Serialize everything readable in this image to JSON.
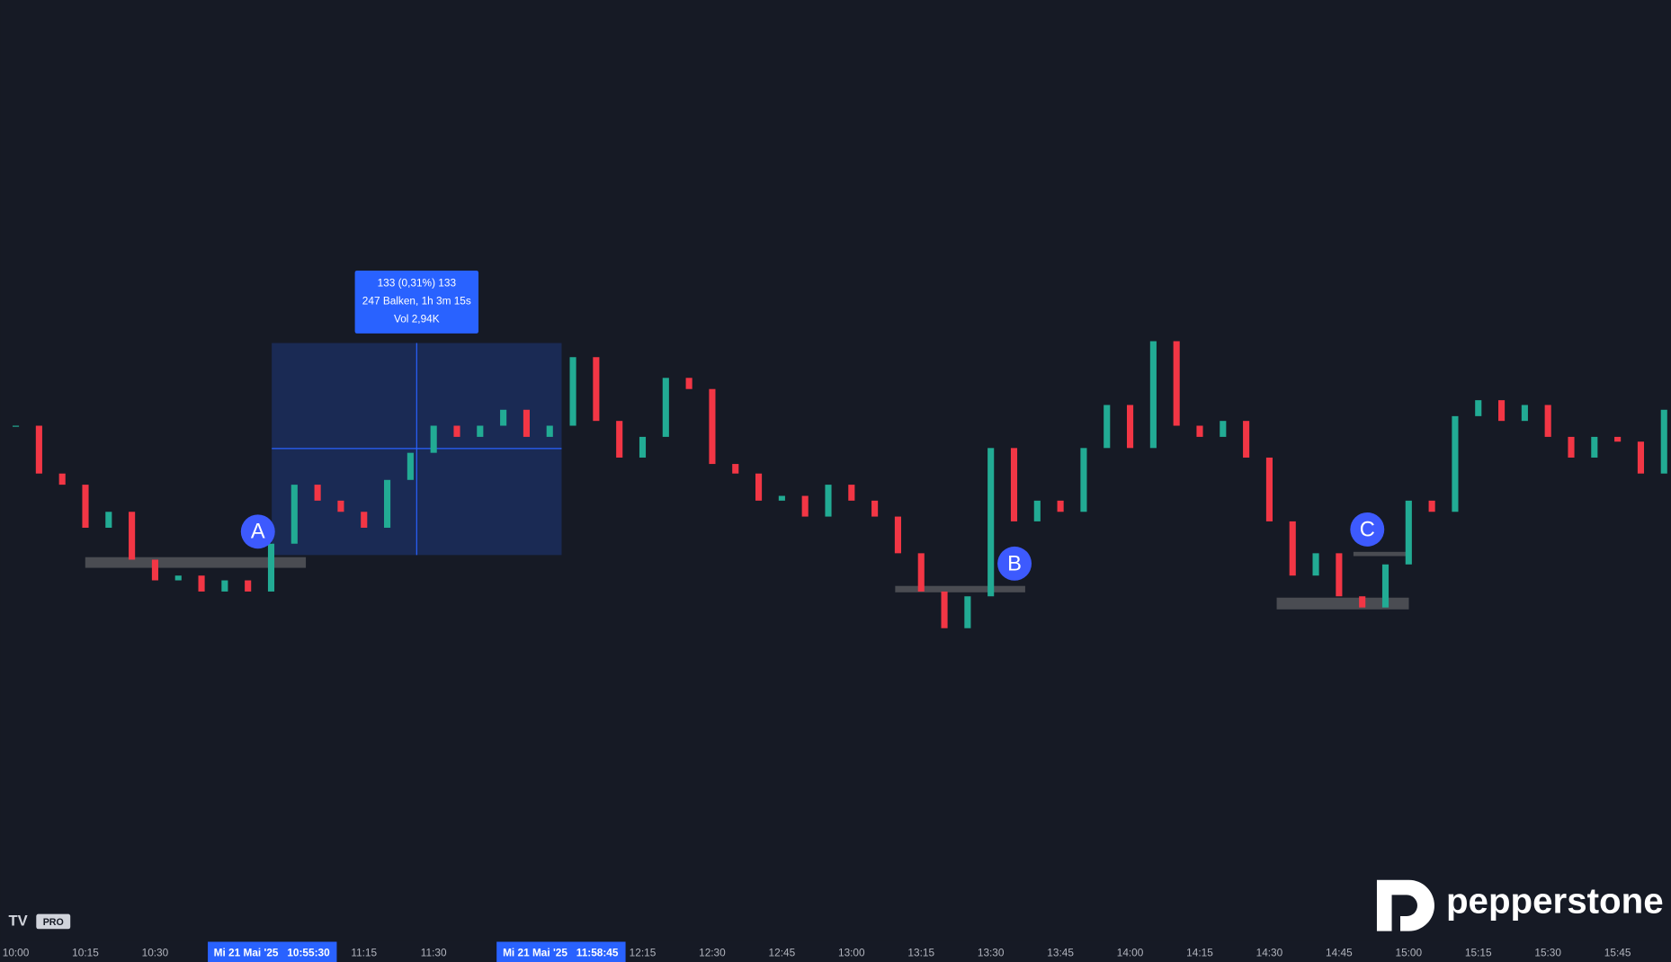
{
  "chart_data": {
    "type": "candlestick",
    "up_color": "#22ab94",
    "down_color": "#f23645",
    "xlim": [
      596.6,
      956.5
    ],
    "ylim": [
      42558,
      43148
    ],
    "xticks": [
      {
        "value": 600,
        "label": "10:00"
      },
      {
        "value": 615,
        "label": "10:15"
      },
      {
        "value": 630,
        "label": "10:30"
      },
      {
        "value": 675,
        "label": "11:15"
      },
      {
        "value": 690,
        "label": "11:30"
      },
      {
        "value": 735,
        "label": "12:15"
      },
      {
        "value": 750,
        "label": "12:30"
      },
      {
        "value": 765,
        "label": "12:45"
      },
      {
        "value": 780,
        "label": "13:00"
      },
      {
        "value": 795,
        "label": "13:15"
      },
      {
        "value": 810,
        "label": "13:30"
      },
      {
        "value": 825,
        "label": "13:45"
      },
      {
        "value": 840,
        "label": "14:00"
      },
      {
        "value": 855,
        "label": "14:15"
      },
      {
        "value": 870,
        "label": "14:30"
      },
      {
        "value": 885,
        "label": "14:45"
      },
      {
        "value": 900,
        "label": "15:00"
      },
      {
        "value": 915,
        "label": "15:15"
      },
      {
        "value": 930,
        "label": "15:30"
      },
      {
        "value": 945,
        "label": "15:45"
      }
    ],
    "x": [
      600,
      605,
      610,
      615,
      620,
      625,
      630,
      635,
      640,
      645,
      650,
      655,
      660,
      665,
      670,
      675,
      680,
      685,
      690,
      695,
      700,
      705,
      710,
      715,
      720,
      725,
      730,
      735,
      740,
      745,
      750,
      755,
      760,
      765,
      770,
      775,
      780,
      785,
      790,
      795,
      800,
      805,
      810,
      815,
      820,
      825,
      830,
      835,
      840,
      845,
      850,
      855,
      860,
      865,
      870,
      875,
      880,
      885,
      890,
      895,
      900,
      905,
      910,
      915,
      920,
      925,
      930,
      935,
      940,
      945,
      950,
      955
    ],
    "series": [
      {
        "values": [
          42881,
          42851,
          42844,
          42817,
          42827,
          42797,
          42784,
          42787,
          42777,
          42784,
          42777,
          42807,
          42844,
          42834,
          42827,
          42817,
          42847,
          42864,
          42881,
          42874,
          42881,
          42891,
          42874,
          42881,
          42924,
          42884,
          42861,
          42874,
          42911,
          42904,
          42857,
          42851,
          42834,
          42837,
          42824,
          42844,
          42834,
          42824,
          42801,
          42777,
          42754,
          42774,
          42867,
          42821,
          42834,
          42827,
          42867,
          42894,
          42867,
          42934,
          42881,
          42874,
          42884,
          42861,
          42821,
          42787,
          42801,
          42774,
          42767,
          42794,
          42834,
          42827,
          42887,
          42897,
          42884,
          42894,
          42874,
          42861,
          42874,
          42871,
          42851,
          42891
        ]
      }
    ],
    "measure_lines": [
      "133 (0,31%) 133",
      "247 Balken, 1h 3m 15s",
      "Vol 2,94K"
    ],
    "range_labels": [
      "Mi 21 Mai '25   10:55:30",
      "Mi 21 Mai '25   11:58:45"
    ],
    "annotations": [
      "A",
      "B",
      "C"
    ],
    "badge": "PRO",
    "brand": "pepperstone"
  }
}
